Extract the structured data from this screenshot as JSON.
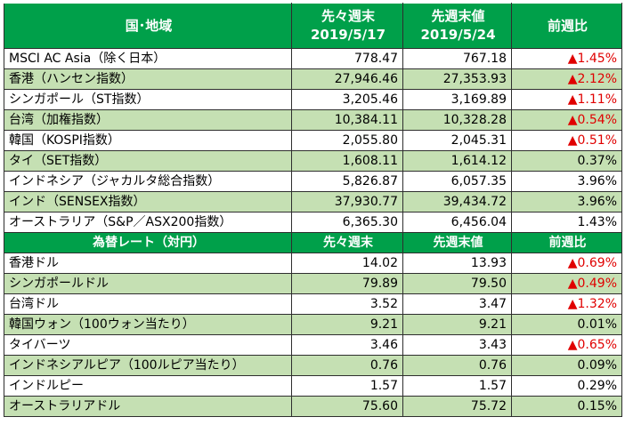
{
  "indices_header": {
    "region": "国･地域",
    "col2_line1": "先々週末",
    "col2_line2": "2019/5/17",
    "col3_line1": "先週末値",
    "col3_line2": "2019/5/24",
    "col4": "前週比"
  },
  "indices": [
    {
      "name": "MSCI AC Asia（除く日本）",
      "prev2": "778.47",
      "prev1": "767.18",
      "change": "▲1.45%",
      "up": true
    },
    {
      "name": "香港（ハンセン指数）",
      "prev2": "27,946.46",
      "prev1": "27,353.93",
      "change": "▲2.12%",
      "up": true
    },
    {
      "name": "シンガポール（ST指数）",
      "prev2": "3,205.46",
      "prev1": "3,169.89",
      "change": "▲1.11%",
      "up": true
    },
    {
      "name": "台湾（加権指数）",
      "prev2": "10,384.11",
      "prev1": "10,328.28",
      "change": "▲0.54%",
      "up": true
    },
    {
      "name": "韓国（KOSPI指数）",
      "prev2": "2,055.80",
      "prev1": "2,045.31",
      "change": "▲0.51%",
      "up": true
    },
    {
      "name": "タイ（SET指数）",
      "prev2": "1,608.11",
      "prev1": "1,614.12",
      "change": "0.37%",
      "up": false
    },
    {
      "name": "インドネシア（ジャカルタ総合指数）",
      "prev2": "5,826.87",
      "prev1": "6,057.35",
      "change": "3.96%",
      "up": false
    },
    {
      "name": "インド（SENSEX指数）",
      "prev2": "37,930.77",
      "prev1": "39,434.72",
      "change": "3.96%",
      "up": false
    },
    {
      "name": "オーストラリア（S&P／ASX200指数）",
      "prev2": "6,365.30",
      "prev1": "6,456.04",
      "change": "1.43%",
      "up": false
    }
  ],
  "fx_header": {
    "title": "為替レート（対円）",
    "col2": "先々週末",
    "col3": "先週末値",
    "col4": "前週比"
  },
  "fx": [
    {
      "name": "香港ドル",
      "prev2": "14.02",
      "prev1": "13.93",
      "change": "▲0.69%",
      "up": true
    },
    {
      "name": "シンガポールドル",
      "prev2": "79.89",
      "prev1": "79.50",
      "change": "▲0.49%",
      "up": true
    },
    {
      "name": "台湾ドル",
      "prev2": "3.52",
      "prev1": "3.47",
      "change": "▲1.32%",
      "up": true
    },
    {
      "name": "韓国ウォン（100ウォン当たり）",
      "prev2": "9.21",
      "prev1": "9.21",
      "change": "0.01%",
      "up": false
    },
    {
      "name": "タイバーツ",
      "prev2": "3.46",
      "prev1": "3.43",
      "change": "▲0.65%",
      "up": true
    },
    {
      "name": "インドネシアルピア（100ルピア当たり）",
      "prev2": "0.76",
      "prev1": "0.76",
      "change": "0.09%",
      "up": false
    },
    {
      "name": "インドルピー",
      "prev2": "1.57",
      "prev1": "1.57",
      "change": "0.29%",
      "up": false
    },
    {
      "name": "オーストラリアドル",
      "prev2": "75.60",
      "prev1": "75.72",
      "change": "0.15%",
      "up": false
    }
  ],
  "colors": {
    "header_green": "#00a04a",
    "row_green": "#c5e0b3",
    "negative_red": "#e00000"
  }
}
